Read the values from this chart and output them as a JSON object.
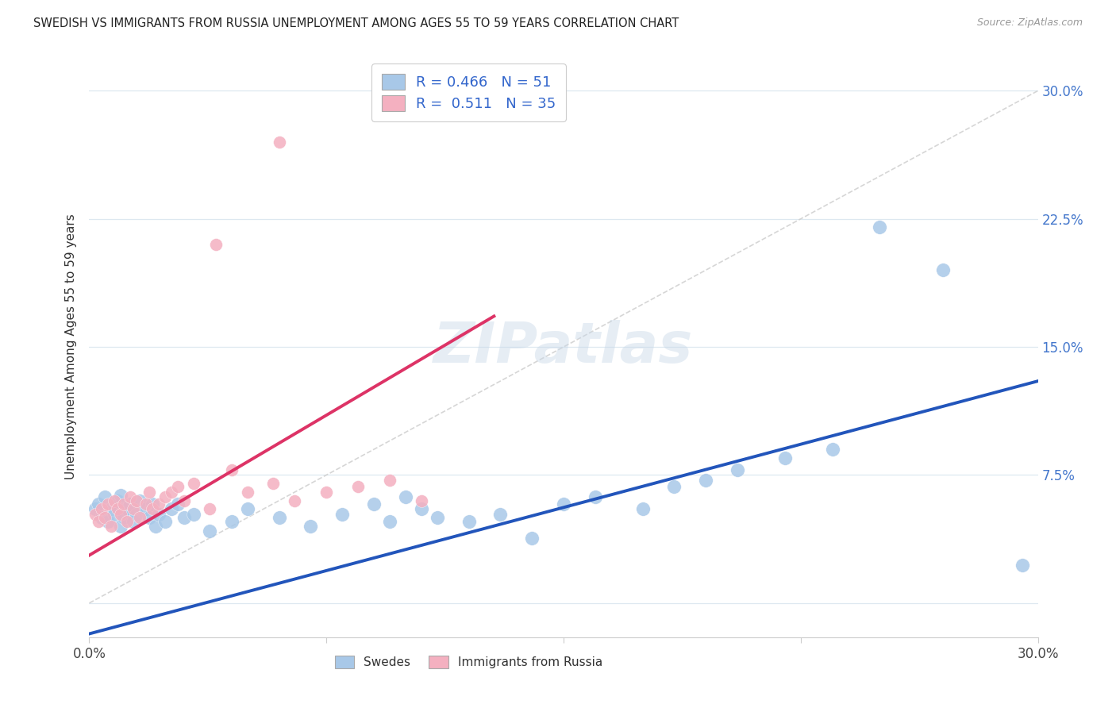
{
  "title": "SWEDISH VS IMMIGRANTS FROM RUSSIA UNEMPLOYMENT AMONG AGES 55 TO 59 YEARS CORRELATION CHART",
  "source": "Source: ZipAtlas.com",
  "ylabel": "Unemployment Among Ages 55 to 59 years",
  "xlim": [
    0.0,
    0.3
  ],
  "ylim": [
    -0.02,
    0.32
  ],
  "R_swedes": 0.466,
  "N_swedes": 51,
  "R_russia": 0.511,
  "N_russia": 35,
  "swedes_color": "#a8c8e8",
  "russia_color": "#f4b0c0",
  "swedes_line_color": "#2255bb",
  "russia_line_color": "#dd3366",
  "ref_line_color": "#cccccc",
  "background_color": "#ffffff",
  "grid_color": "#dde8f0",
  "swedes_x": [
    0.002,
    0.003,
    0.004,
    0.005,
    0.006,
    0.007,
    0.008,
    0.009,
    0.01,
    0.01,
    0.011,
    0.012,
    0.013,
    0.014,
    0.015,
    0.016,
    0.018,
    0.019,
    0.02,
    0.021,
    0.022,
    0.024,
    0.026,
    0.028,
    0.03,
    0.033,
    0.038,
    0.045,
    0.05,
    0.06,
    0.07,
    0.08,
    0.09,
    0.095,
    0.1,
    0.105,
    0.11,
    0.12,
    0.13,
    0.14,
    0.15,
    0.16,
    0.175,
    0.185,
    0.195,
    0.205,
    0.22,
    0.235,
    0.25,
    0.27,
    0.295
  ],
  "swedes_y": [
    0.055,
    0.058,
    0.05,
    0.062,
    0.048,
    0.055,
    0.052,
    0.06,
    0.045,
    0.063,
    0.05,
    0.055,
    0.058,
    0.048,
    0.052,
    0.06,
    0.055,
    0.05,
    0.058,
    0.045,
    0.052,
    0.048,
    0.055,
    0.058,
    0.05,
    0.052,
    0.042,
    0.048,
    0.055,
    0.05,
    0.045,
    0.052,
    0.058,
    0.048,
    0.062,
    0.055,
    0.05,
    0.048,
    0.052,
    0.038,
    0.058,
    0.062,
    0.055,
    0.068,
    0.072,
    0.078,
    0.085,
    0.09,
    0.22,
    0.195,
    0.022
  ],
  "russia_x": [
    0.002,
    0.003,
    0.004,
    0.005,
    0.006,
    0.007,
    0.008,
    0.009,
    0.01,
    0.011,
    0.012,
    0.013,
    0.014,
    0.015,
    0.016,
    0.018,
    0.019,
    0.02,
    0.022,
    0.024,
    0.026,
    0.028,
    0.03,
    0.033,
    0.038,
    0.045,
    0.05,
    0.058,
    0.065,
    0.075,
    0.085,
    0.095,
    0.105,
    0.06,
    0.04
  ],
  "russia_y": [
    0.052,
    0.048,
    0.055,
    0.05,
    0.058,
    0.045,
    0.06,
    0.055,
    0.052,
    0.058,
    0.048,
    0.062,
    0.055,
    0.06,
    0.05,
    0.058,
    0.065,
    0.055,
    0.058,
    0.062,
    0.065,
    0.068,
    0.06,
    0.07,
    0.055,
    0.078,
    0.065,
    0.07,
    0.06,
    0.065,
    0.068,
    0.072,
    0.06,
    0.27,
    0.21
  ],
  "swedes_trend_x0": 0.0,
  "swedes_trend_y0": -0.018,
  "swedes_trend_x1": 0.3,
  "swedes_trend_y1": 0.13,
  "russia_trend_x0": 0.0,
  "russia_trend_y0": 0.028,
  "russia_trend_x1": 0.128,
  "russia_trend_y1": 0.168
}
